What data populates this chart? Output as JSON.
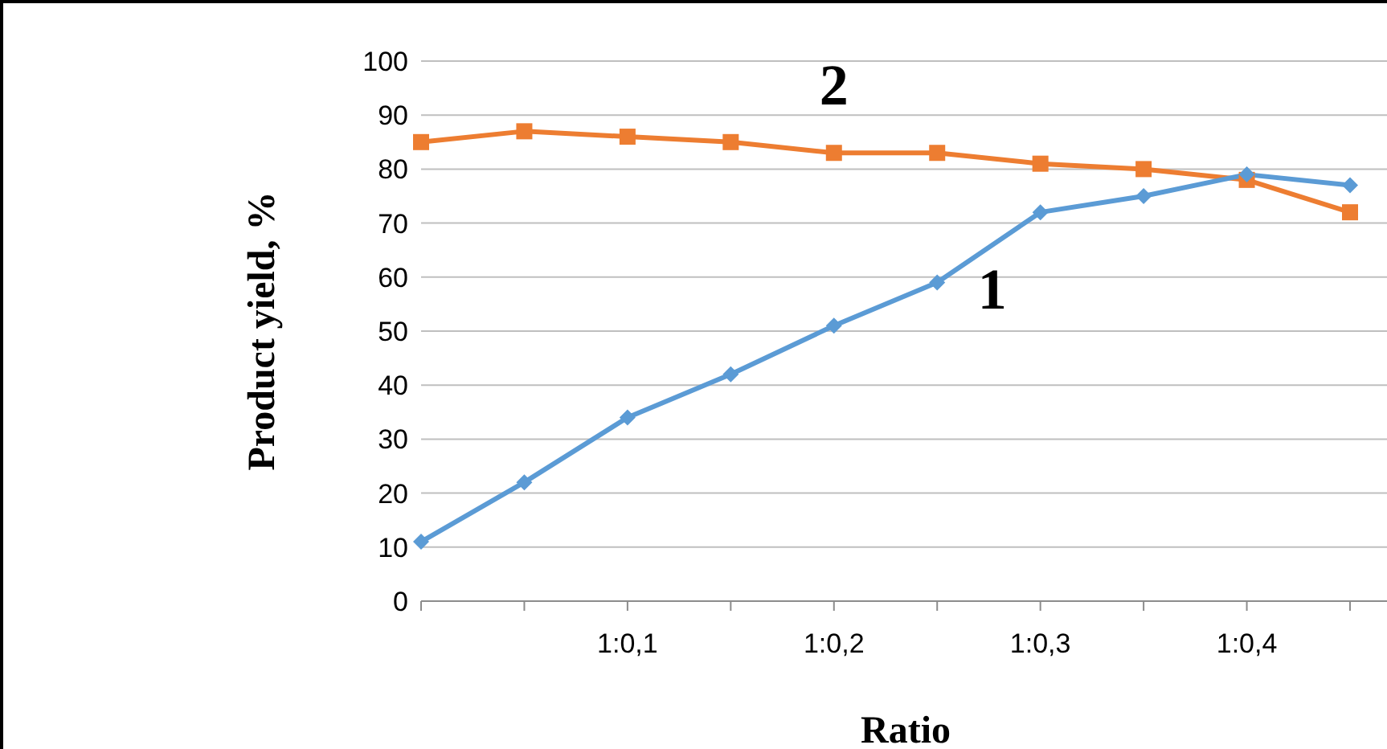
{
  "chart_data": {
    "type": "line",
    "xlabel": "Ratio",
    "ylabel": "Product yield, %",
    "categories": [
      null,
      null,
      "1:0,1",
      null,
      "1:0,2",
      null,
      "1:0,3",
      null,
      "1:0,4",
      null
    ],
    "series": [
      {
        "name": "1",
        "color": "#5b9bd5",
        "marker": "diamond",
        "values": [
          11,
          22,
          34,
          42,
          51,
          59,
          72,
          75,
          79,
          77
        ]
      },
      {
        "name": "2",
        "color": "#ed7d31",
        "marker": "square",
        "values": [
          85,
          87,
          86,
          85,
          83,
          83,
          81,
          80,
          78,
          72
        ]
      }
    ],
    "ylim": [
      0,
      100
    ],
    "yticks": [
      0,
      10,
      20,
      30,
      40,
      50,
      60,
      70,
      80,
      90,
      100
    ],
    "grid": "y",
    "line_style": "solid"
  }
}
